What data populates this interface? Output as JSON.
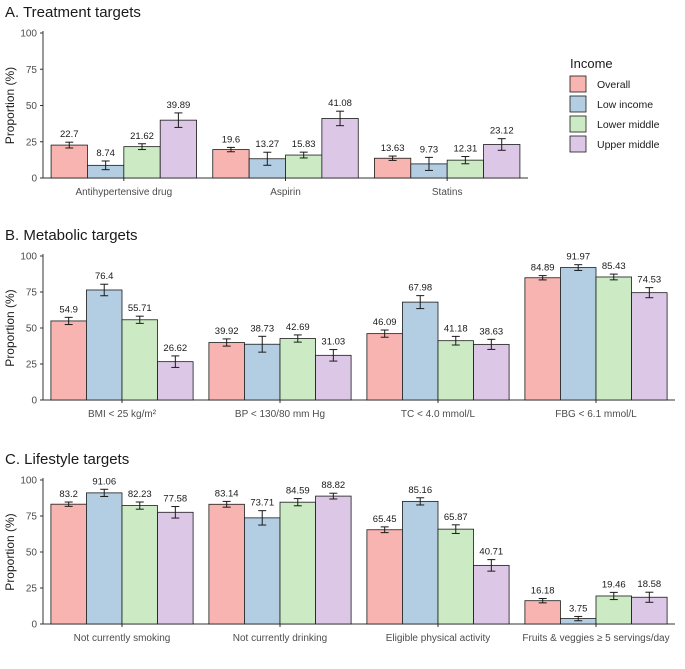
{
  "chart_data": [
    {
      "type": "bar",
      "title": "A. Treatment targets",
      "ylabel": "Proportion (%)",
      "xlabel": "",
      "ylim": [
        0,
        100
      ],
      "yticks": [
        0,
        25,
        50,
        75,
        100
      ],
      "categories": [
        "Antihypertensive drug",
        "Aspirin",
        "Statins"
      ],
      "series": [
        {
          "name": "Overall",
          "values": [
            22.7,
            19.6,
            13.63
          ],
          "error": [
            2.0,
            1.5,
            1.5
          ]
        },
        {
          "name": "Low income",
          "values": [
            8.74,
            13.27,
            9.73
          ],
          "error": [
            3.0,
            4.5,
            4.5
          ]
        },
        {
          "name": "Lower middle",
          "values": [
            21.62,
            15.83,
            12.31
          ],
          "error": [
            2.0,
            2.0,
            2.5
          ]
        },
        {
          "name": "Upper middle",
          "values": [
            39.89,
            41.08,
            23.12
          ],
          "error": [
            5.0,
            5.0,
            4.0
          ]
        }
      ]
    },
    {
      "type": "bar",
      "title": "B. Metabolic targets",
      "ylabel": "Proportion (%)",
      "xlabel": "",
      "ylim": [
        0,
        100
      ],
      "yticks": [
        0,
        25,
        50,
        75,
        100
      ],
      "categories": [
        "BMI < 25 kg/m²",
        "BP < 130/80 mm Hg",
        "TC < 4.0 mmol/L",
        "FBG < 6.1 mmol/L"
      ],
      "series": [
        {
          "name": "Overall",
          "values": [
            54.9,
            39.92,
            46.09,
            84.89
          ],
          "error": [
            2.5,
            2.5,
            2.5,
            1.5
          ]
        },
        {
          "name": "Low income",
          "values": [
            76.4,
            38.73,
            67.98,
            91.97
          ],
          "error": [
            4.0,
            5.5,
            4.5,
            2.0
          ]
        },
        {
          "name": "Lower middle",
          "values": [
            55.71,
            42.69,
            41.18,
            85.43
          ],
          "error": [
            2.5,
            2.5,
            3.0,
            2.0
          ]
        },
        {
          "name": "Upper middle",
          "values": [
            26.62,
            31.03,
            38.63,
            74.53
          ],
          "error": [
            4.0,
            4.0,
            3.5,
            3.5
          ]
        }
      ]
    },
    {
      "type": "bar",
      "title": "C. Lifestyle targets",
      "ylabel": "Proportion (%)",
      "xlabel": "",
      "ylim": [
        0,
        100
      ],
      "yticks": [
        0,
        25,
        50,
        75,
        100
      ],
      "categories": [
        "Not currently smoking",
        "Not currently drinking",
        "Eligible physical activity",
        "Fruits & veggies ≥ 5 servings/day"
      ],
      "series": [
        {
          "name": "Overall",
          "values": [
            83.2,
            83.14,
            65.45,
            16.18
          ],
          "error": [
            1.5,
            2.0,
            2.0,
            1.5
          ]
        },
        {
          "name": "Low income",
          "values": [
            91.06,
            73.71,
            85.16,
            3.75
          ],
          "error": [
            2.5,
            5.0,
            2.5,
            1.5
          ]
        },
        {
          "name": "Lower middle",
          "values": [
            82.23,
            84.59,
            65.87,
            19.46
          ],
          "error": [
            2.5,
            2.5,
            3.0,
            2.5
          ]
        },
        {
          "name": "Upper middle",
          "values": [
            77.58,
            88.82,
            40.71,
            18.58
          ],
          "error": [
            4.0,
            2.0,
            4.0,
            3.5
          ]
        }
      ]
    }
  ],
  "legend": {
    "title": "Income",
    "placement": "right",
    "items": [
      {
        "name": "Overall",
        "color": "#f8b4b0"
      },
      {
        "name": "Low income",
        "color": "#b3cde3"
      },
      {
        "name": "Lower middle",
        "color": "#ccebc5"
      },
      {
        "name": "Upper middle",
        "color": "#dcc8e6"
      }
    ]
  }
}
